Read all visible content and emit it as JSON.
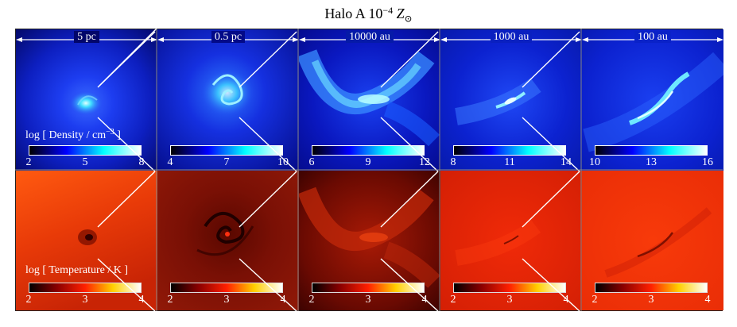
{
  "figure": {
    "title_prefix": "Halo A   10",
    "title_exp": "−4",
    "title_symbol": "Z",
    "title_sub": "⊙"
  },
  "scales": [
    "5 pc",
    "0.5 pc",
    "10000 au",
    "1000 au",
    "100 au"
  ],
  "density": {
    "label_pre": "log [ Density / cm",
    "label_exp": "−3",
    "label_post": " ]",
    "ticks": [
      [
        "2",
        "5",
        "8"
      ],
      [
        "4",
        "7",
        "10"
      ],
      [
        "6",
        "9",
        "12"
      ],
      [
        "8",
        "11",
        "14"
      ],
      [
        "10",
        "13",
        "16"
      ]
    ]
  },
  "temperature": {
    "label": "log [ Temperature / K ]",
    "ticks": [
      [
        "2",
        "3",
        "4"
      ],
      [
        "2",
        "3",
        "4"
      ],
      [
        "2",
        "3",
        "4"
      ],
      [
        "2",
        "3",
        "4"
      ],
      [
        "2",
        "3",
        "4"
      ]
    ]
  },
  "colors": {
    "density_map": [
      "#000000",
      "#0000ff",
      "#00ffff",
      "#ffffff"
    ],
    "temperature_map": [
      "#000000",
      "#8b0000",
      "#ff2000",
      "#ffd000",
      "#ffffff"
    ]
  }
}
